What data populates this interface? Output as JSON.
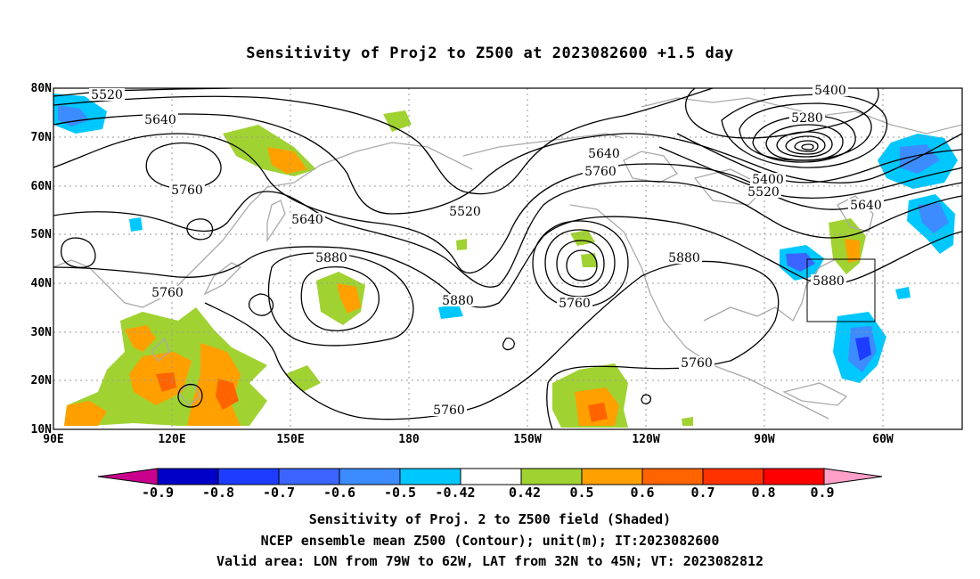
{
  "title": "Sensitivity of Proj2 to Z500 at 2023082600 +1.5 day",
  "lat_labels": [
    "80N",
    "70N",
    "60N",
    "50N",
    "40N",
    "30N",
    "20N",
    "10N"
  ],
  "lon_labels": [
    "90E",
    "120E",
    "150E",
    "180",
    "150W",
    "120W",
    "90W",
    "60W"
  ],
  "contour_labels": [
    "5520",
    "5640",
    "5760",
    "5640",
    "5520",
    "5640",
    "5760",
    "5400",
    "5280",
    "5400",
    "5520",
    "5640",
    "5880",
    "5760",
    "5880",
    "5760",
    "5880",
    "5880",
    "5760",
    "5760"
  ],
  "colorbar": {
    "ticks": [
      "-0.9",
      "-0.8",
      "-0.7",
      "-0.6",
      "-0.5",
      "-0.42",
      "0.42",
      "0.5",
      "0.6",
      "0.7",
      "0.8",
      "0.9"
    ],
    "colors": [
      "#c8008c",
      "#0000c8",
      "#1e3cff",
      "#3c64ff",
      "#3c8cff",
      "#00c8ff",
      "#ffffff",
      "#a0d232",
      "#ffa000",
      "#ff6400",
      "#ff3200",
      "#ff0000",
      "#ffa0c8"
    ]
  },
  "captions": [
    "Sensitivity of Proj. 2 to Z500 field (Shaded)",
    "NCEP ensemble mean Z500 (Contour); unit(m); IT:2023082600",
    "Valid area: LON from 79W to 62W, LAT from 32N to 45N; VT: 2023082812"
  ]
}
